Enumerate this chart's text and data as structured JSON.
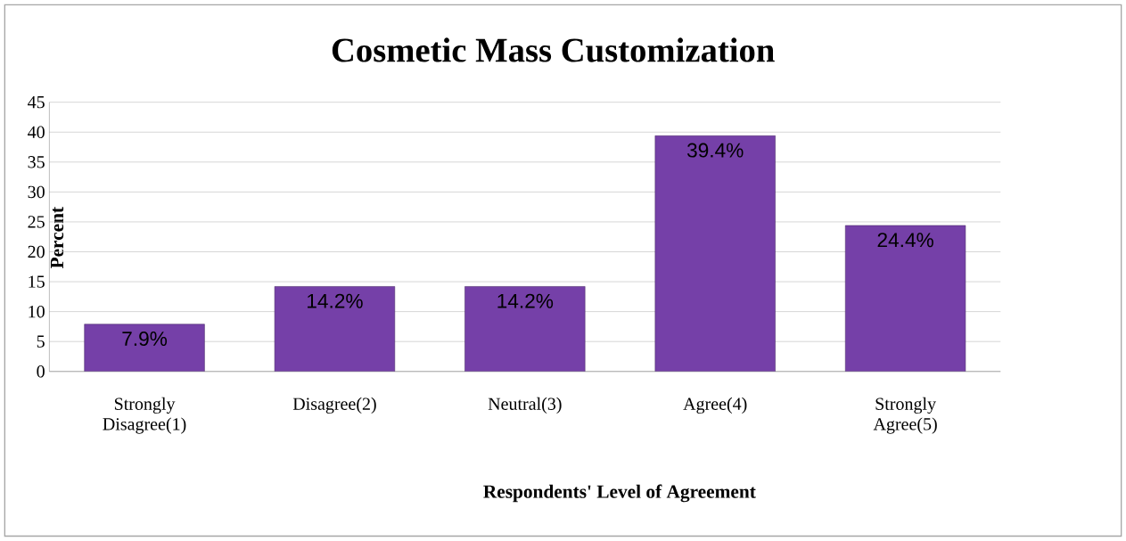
{
  "chart_data": {
    "type": "bar",
    "title": "Cosmetic Mass Customization",
    "xlabel": "Respondents' Level of Agreement",
    "ylabel": "Percent",
    "categories": [
      "Strongly Disagree(1)",
      "Disagree(2)",
      "Neutral(3)",
      "Agree(4)",
      "Strongly Agree(5)"
    ],
    "values": [
      7.9,
      14.2,
      14.2,
      39.4,
      24.4
    ],
    "value_labels": [
      "7.9%",
      "14.2%",
      "14.2%",
      "39.4%",
      "24.4%"
    ],
    "color": "#7540a8",
    "ylim": [
      0,
      45
    ],
    "yticks": [
      0,
      5,
      10,
      15,
      20,
      25,
      30,
      35,
      40,
      45
    ],
    "grid": "y"
  }
}
